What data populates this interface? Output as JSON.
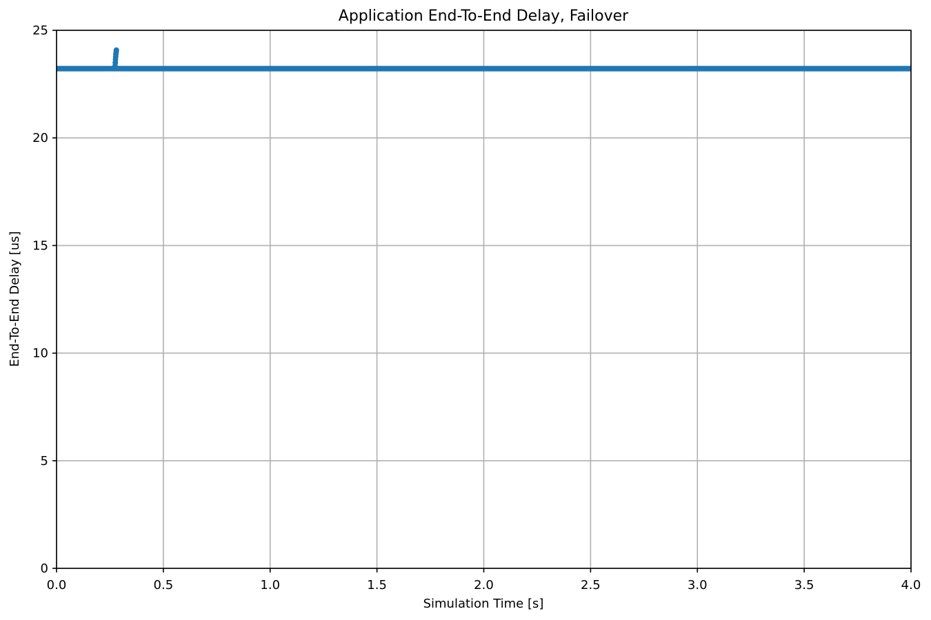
{
  "chart_data": {
    "type": "scatter",
    "title": "Application End-To-End Delay, Failover",
    "xlabel": "Simulation Time [s]",
    "ylabel": "End-To-End Delay [us]",
    "xlim": [
      0,
      4
    ],
    "ylim": [
      0,
      25
    ],
    "xticks": [
      0,
      0.5,
      1,
      1.5,
      2,
      2.5,
      3,
      3.5,
      4
    ],
    "xtick_labels": [
      "0.0",
      "0.5",
      "1.0",
      "1.5",
      "2.0",
      "2.5",
      "3.0",
      "3.5",
      "4.0"
    ],
    "yticks": [
      0,
      5,
      10,
      15,
      20,
      25
    ],
    "ytick_labels": [
      "0",
      "5",
      "10",
      "15",
      "20",
      "25"
    ],
    "grid": true,
    "series": [
      {
        "color": "#1f77b4",
        "baseline": {
          "x_start": 0,
          "x_end": 4,
          "y": 23.22
        },
        "transient_points": [
          {
            "x": 0.274,
            "y": 23.35
          },
          {
            "x": 0.275,
            "y": 23.5
          },
          {
            "x": 0.276,
            "y": 23.65
          },
          {
            "x": 0.277,
            "y": 23.78
          },
          {
            "x": 0.278,
            "y": 23.9
          },
          {
            "x": 0.279,
            "y": 24.0
          },
          {
            "x": 0.28,
            "y": 24.08
          }
        ]
      }
    ]
  }
}
